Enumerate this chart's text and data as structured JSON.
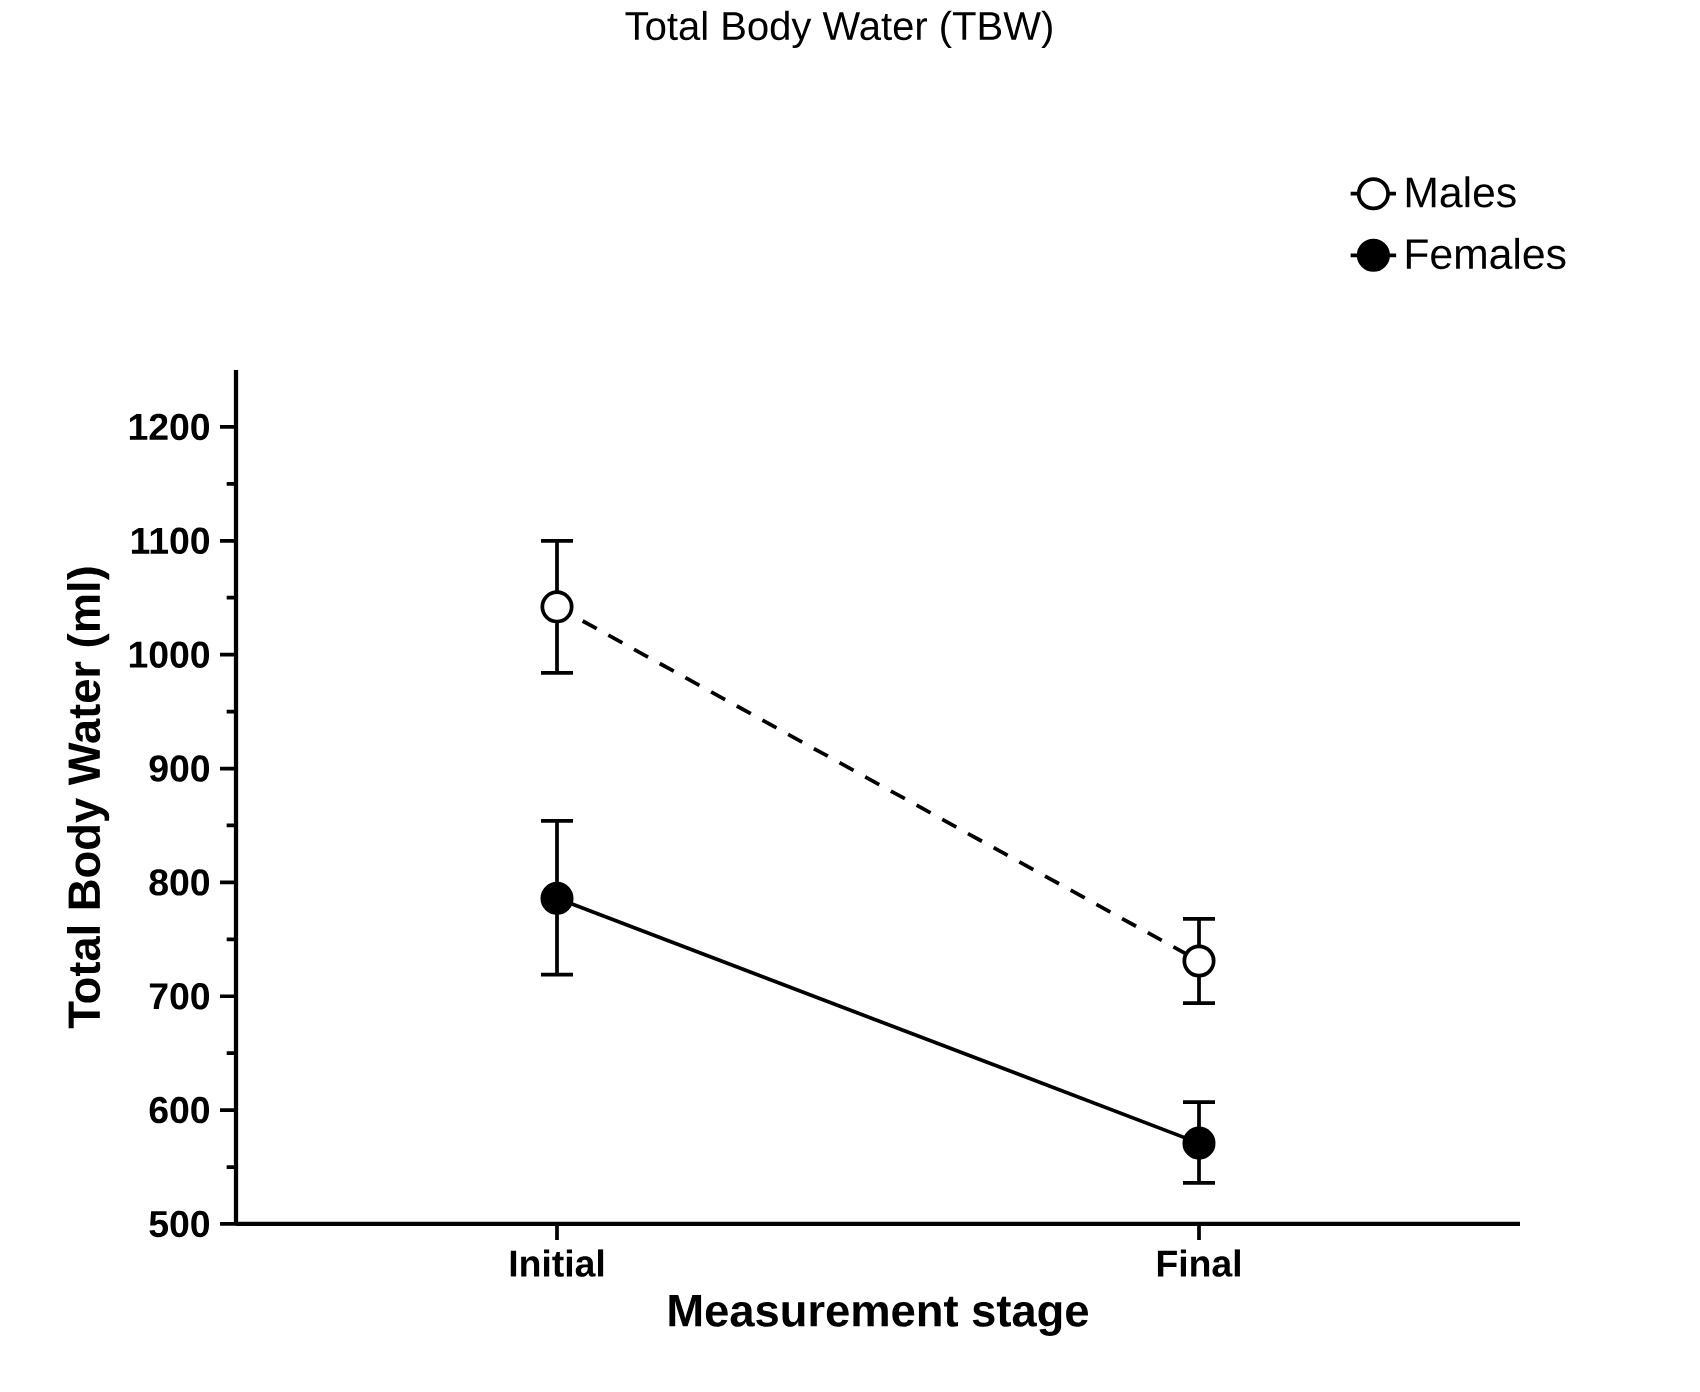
{
  "chart_data": {
    "type": "line",
    "title": "Total  Body  Water (TBW)",
    "xlabel": "Measurement stage",
    "ylabel": "Total  Body  Water  (ml)",
    "categories": [
      "Initial",
      "Final"
    ],
    "series": [
      {
        "name": "Males",
        "color": "#000000",
        "line_style": "dashed",
        "values": [
          1042,
          731
        ],
        "errors": [
          [
            984,
            1100
          ],
          [
            694,
            768
          ]
        ]
      },
      {
        "name": "Females",
        "color": "#000000",
        "line_style": "solid",
        "values": [
          786,
          571
        ],
        "errors": [
          [
            719,
            854
          ],
          [
            536,
            607
          ]
        ]
      }
    ],
    "ylim": [
      500,
      1250
    ],
    "yticks": [
      500,
      600,
      700,
      800,
      900,
      1000,
      1100,
      1200
    ],
    "marker": "circle",
    "grid": false,
    "legend": "top right"
  }
}
